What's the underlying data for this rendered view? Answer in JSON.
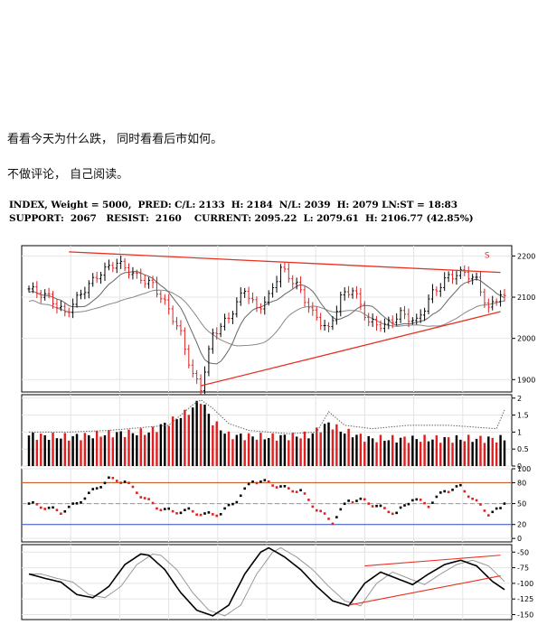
{
  "post": {
    "line1": "看看今天为什么跌， 同时看看后市如何。",
    "line2": "不做评论， 自己阅读。"
  },
  "header": {
    "line1": "INDEX, Weight = 5000,  PRED: C/L: 2133  H: 2184  N/L: 2039  H: 2079 LN:ST = 18:83",
    "line2": "SUPPORT:  2067   RESIST:  2160    CURRENT: 2095.22  L: 2079.61  H: 2106.77 (42.85%)"
  },
  "colors": {
    "up": "#000000",
    "down": "#e02020",
    "trend": "#e83020",
    "ma": "#888888",
    "ob": "#c05018",
    "os": "#3050c0"
  },
  "chart_data": [
    {
      "type": "candlestick",
      "panel": "price",
      "ylim": [
        1870,
        2225
      ],
      "yticks": [
        1900,
        2000,
        2100,
        2200
      ],
      "annotation": "S",
      "anchors": [
        [
          0,
          2120
        ],
        [
          5,
          2100
        ],
        [
          9,
          2060
        ],
        [
          14,
          2120
        ],
        [
          18,
          2160
        ],
        [
          22,
          2185
        ],
        [
          27,
          2150
        ],
        [
          31,
          2130
        ],
        [
          35,
          2070
        ],
        [
          38,
          2010
        ],
        [
          41,
          1910
        ],
        [
          43,
          1880
        ],
        [
          46,
          2010
        ],
        [
          50,
          2050
        ],
        [
          54,
          2120
        ],
        [
          57,
          2070
        ],
        [
          60,
          2100
        ],
        [
          63,
          2170
        ],
        [
          67,
          2130
        ],
        [
          71,
          2060
        ],
        [
          75,
          2020
        ],
        [
          78,
          2100
        ],
        [
          81,
          2120
        ],
        [
          85,
          2040
        ],
        [
          89,
          2030
        ],
        [
          93,
          2060
        ],
        [
          97,
          2040
        ],
        [
          101,
          2110
        ],
        [
          105,
          2150
        ],
        [
          109,
          2160
        ],
        [
          112,
          2140
        ],
        [
          115,
          2070
        ],
        [
          118,
          2110
        ],
        [
          119,
          2095
        ]
      ],
      "trendlines": [
        {
          "x": [
            10,
            118
          ],
          "y": [
            2210,
            2160
          ]
        },
        {
          "x": [
            43,
            118
          ],
          "y": [
            1885,
            2065
          ]
        }
      ]
    },
    {
      "type": "bar",
      "panel": "volume",
      "ylim": [
        0,
        2.1
      ],
      "yticks": [
        0.0,
        0.5,
        1.0,
        1.5,
        2.0
      ],
      "anchors": [
        [
          0,
          0.9
        ],
        [
          10,
          0.85
        ],
        [
          20,
          0.95
        ],
        [
          30,
          1.0
        ],
        [
          36,
          1.35
        ],
        [
          40,
          1.6
        ],
        [
          43,
          1.95
        ],
        [
          46,
          1.3
        ],
        [
          50,
          0.9
        ],
        [
          60,
          0.85
        ],
        [
          70,
          0.9
        ],
        [
          75,
          1.25
        ],
        [
          78,
          1.05
        ],
        [
          85,
          0.8
        ],
        [
          95,
          0.8
        ],
        [
          105,
          0.8
        ],
        [
          115,
          0.8
        ],
        [
          119,
          0.8
        ]
      ],
      "ma_anchors": [
        [
          0,
          1.0
        ],
        [
          10,
          1.0
        ],
        [
          20,
          1.05
        ],
        [
          30,
          1.15
        ],
        [
          35,
          1.2
        ],
        [
          38,
          1.5
        ],
        [
          41,
          1.8
        ],
        [
          43,
          1.95
        ],
        [
          46,
          1.7
        ],
        [
          50,
          1.25
        ],
        [
          55,
          1.05
        ],
        [
          65,
          0.95
        ],
        [
          72,
          1.0
        ],
        [
          75,
          1.6
        ],
        [
          79,
          1.2
        ],
        [
          86,
          1.1
        ],
        [
          95,
          1.2
        ],
        [
          105,
          1.2
        ],
        [
          117,
          1.1
        ],
        [
          119,
          1.65
        ]
      ]
    },
    {
      "type": "scatter",
      "panel": "oscillator",
      "ylim": [
        -5,
        100
      ],
      "yticks": [
        0,
        20,
        50,
        80,
        100
      ],
      "levels": [
        80,
        50,
        20
      ],
      "anchors": [
        [
          0,
          50
        ],
        [
          4,
          45
        ],
        [
          8,
          38
        ],
        [
          12,
          50
        ],
        [
          16,
          68
        ],
        [
          20,
          85
        ],
        [
          24,
          82
        ],
        [
          28,
          62
        ],
        [
          32,
          45
        ],
        [
          36,
          38
        ],
        [
          40,
          40
        ],
        [
          44,
          34
        ],
        [
          48,
          36
        ],
        [
          52,
          55
        ],
        [
          56,
          83
        ],
        [
          60,
          80
        ],
        [
          64,
          72
        ],
        [
          68,
          68
        ],
        [
          72,
          42
        ],
        [
          76,
          24
        ],
        [
          80,
          55
        ],
        [
          84,
          54
        ],
        [
          88,
          44
        ],
        [
          92,
          36
        ],
        [
          96,
          57
        ],
        [
          100,
          48
        ],
        [
          104,
          68
        ],
        [
          108,
          74
        ],
        [
          112,
          52
        ],
        [
          115,
          36
        ],
        [
          118,
          42
        ],
        [
          119,
          52
        ]
      ]
    },
    {
      "type": "line",
      "panel": "cycle",
      "ylim": [
        -158,
        -38
      ],
      "yticks": [
        -50,
        -75,
        -100,
        -125,
        -150
      ],
      "anchors": [
        [
          0,
          -85
        ],
        [
          4,
          -92
        ],
        [
          8,
          -98
        ],
        [
          12,
          -118
        ],
        [
          16,
          -123
        ],
        [
          20,
          -105
        ],
        [
          24,
          -70
        ],
        [
          28,
          -53
        ],
        [
          30,
          -55
        ],
        [
          34,
          -78
        ],
        [
          38,
          -115
        ],
        [
          42,
          -143
        ],
        [
          46,
          -152
        ],
        [
          50,
          -135
        ],
        [
          54,
          -85
        ],
        [
          58,
          -50
        ],
        [
          60,
          -43
        ],
        [
          64,
          -58
        ],
        [
          68,
          -78
        ],
        [
          72,
          -105
        ],
        [
          76,
          -128
        ],
        [
          80,
          -136
        ],
        [
          84,
          -100
        ],
        [
          88,
          -82
        ],
        [
          92,
          -92
        ],
        [
          96,
          -102
        ],
        [
          100,
          -85
        ],
        [
          104,
          -70
        ],
        [
          108,
          -63
        ],
        [
          112,
          -72
        ],
        [
          116,
          -97
        ],
        [
          119,
          -110
        ]
      ],
      "trendlines": [
        {
          "x": [
            84,
            118
          ],
          "y": [
            -72,
            -55
          ]
        },
        {
          "x": [
            80,
            118
          ],
          "y": [
            -135,
            -88
          ]
        }
      ]
    }
  ]
}
